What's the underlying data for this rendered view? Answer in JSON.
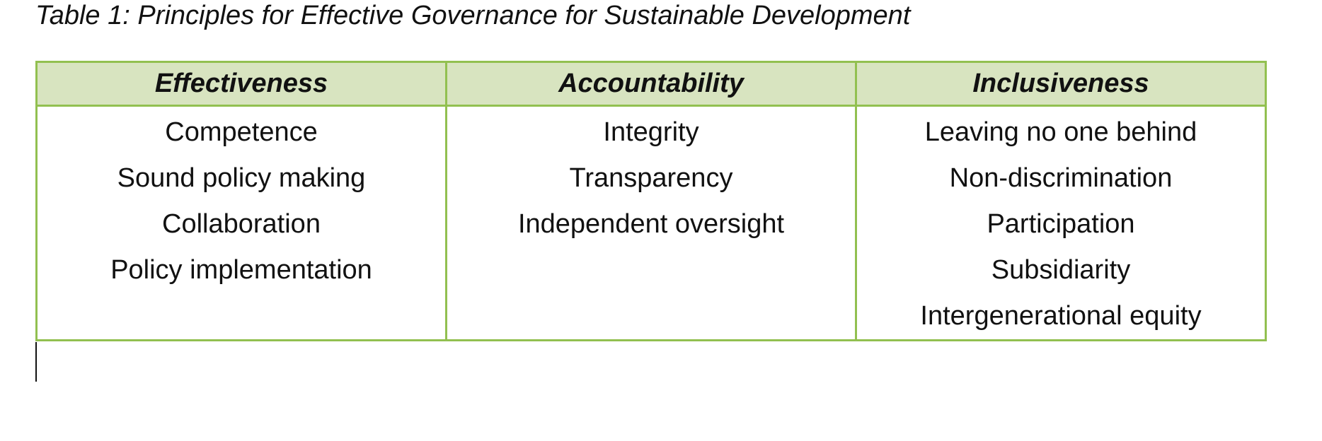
{
  "caption": "Table 1: Principles for Effective Governance for Sustainable Development",
  "colors": {
    "border": "#92c050",
    "header_background": "#d8e4c0"
  },
  "table": {
    "columns": [
      {
        "header": "Effectiveness",
        "items": [
          "Competence",
          "Sound policy making",
          "Collaboration",
          "Policy implementation"
        ]
      },
      {
        "header": "Accountability",
        "items": [
          "Integrity",
          "Transparency",
          "Independent oversight"
        ]
      },
      {
        "header": "Inclusiveness",
        "items": [
          "Leaving no one behind",
          "Non-discrimination",
          "Participation",
          "Subsidiarity",
          "Intergenerational equity"
        ]
      }
    ]
  }
}
